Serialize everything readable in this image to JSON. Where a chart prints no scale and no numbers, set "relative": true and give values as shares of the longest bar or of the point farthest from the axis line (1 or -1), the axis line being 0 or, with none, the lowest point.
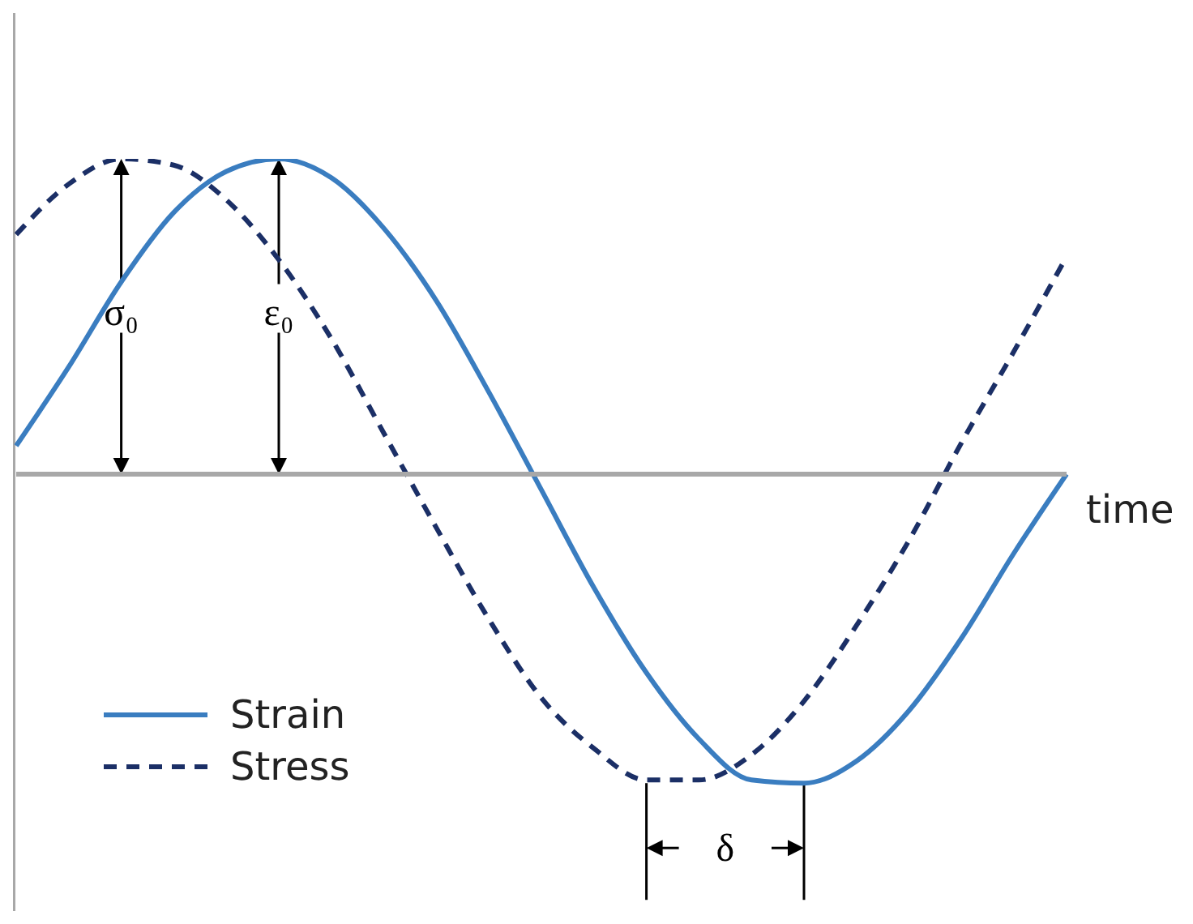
{
  "chart_data": {
    "type": "line",
    "relative": true,
    "xlabel": "time",
    "legend": "bottom left",
    "categories": [
      null,
      null,
      null,
      null,
      null,
      null,
      null,
      null,
      null,
      null,
      null,
      null,
      null,
      null,
      null,
      null,
      null,
      null,
      null,
      null,
      null
    ],
    "series": [
      {
        "name": "Strain",
        "color": "#3a7dc0",
        "line_style": "solid",
        "values": [
          0.09,
          0.34,
          0.61,
          0.83,
          0.96,
          1.0,
          0.94,
          0.78,
          0.55,
          0.26,
          -0.05,
          -0.36,
          -0.63,
          -0.84,
          -0.97,
          -0.98,
          -0.91,
          -0.75,
          -0.52,
          -0.25,
          0.0
        ]
      },
      {
        "name": "Stress",
        "color": "#1b2f66",
        "line_style": "dashed",
        "values": [
          0.76,
          0.92,
          1.0,
          0.98,
          0.87,
          0.68,
          0.43,
          0.13,
          -0.17,
          -0.46,
          -0.71,
          -0.87,
          -0.97,
          -0.97,
          -0.89,
          -0.72,
          -0.48,
          -0.21,
          0.1,
          0.39,
          0.69
        ]
      }
    ],
    "annotations": [
      "σ₀",
      "ε₀",
      "δ"
    ]
  }
}
